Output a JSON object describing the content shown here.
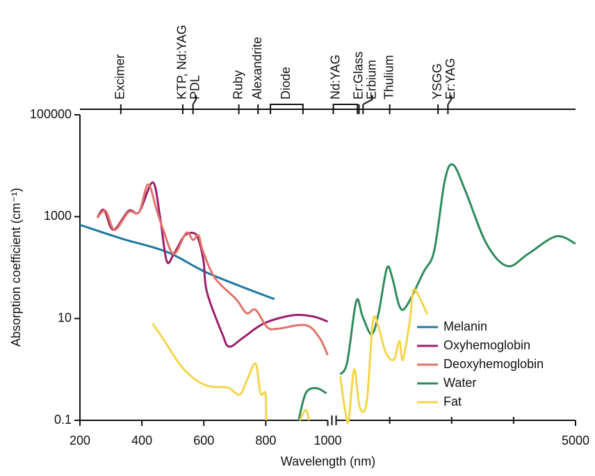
{
  "chart_data": {
    "type": "line",
    "xlabel": "Wavelength (nm)",
    "ylabel": "Absorption coefficient (cm⁻¹)",
    "ylog": true,
    "ylim": [
      0.1,
      100000
    ],
    "yticks": [
      0.1,
      10,
      1000,
      100000
    ],
    "xsegments": [
      [
        200,
        1000
      ],
      [
        1000,
        5000
      ]
    ],
    "xticks": [
      200,
      400,
      600,
      800,
      1000,
      5000
    ],
    "xminor_ticks": [
      2000,
      3000,
      4000
    ],
    "grid": false,
    "legend_position": "lower right",
    "lasers": [
      {
        "name": "Excimer",
        "wavelength": 332
      },
      {
        "name": "KTP, Nd:YAG",
        "wavelength": 532
      },
      {
        "name": "PDL",
        "wavelength": 565
      },
      {
        "name": "Ruby",
        "wavelength": 713
      },
      {
        "name": "Alexandrite",
        "wavelength": 775
      },
      {
        "name": "Diode",
        "range": [
          815,
          920
        ]
      },
      {
        "name": "Nd:YAG",
        "range": [
          1090,
          1480
        ]
      },
      {
        "name": "Er:Glass",
        "wavelength": 1505
      },
      {
        "name": "Erbium",
        "wavelength": 1570
      },
      {
        "name": "Thulium",
        "wavelength": 2000
      },
      {
        "name": "YSGG",
        "wavelength": 2780
      },
      {
        "name": "Er:YAG",
        "wavelength": 2940
      }
    ],
    "series": [
      {
        "name": "Melanin",
        "color": "#1f78a0",
        "x": [
          200,
          335,
          480,
          603,
          727,
          828
        ],
        "values": [
          690,
          370,
          204,
          83,
          41,
          24
        ]
      },
      {
        "name": "Oxyhemoglobin",
        "color": "#9a1f6b",
        "x": [
          256,
          278,
          308,
          357,
          391,
          435,
          458,
          480,
          503,
          536,
          563,
          581,
          599,
          610,
          660,
          682,
          727,
          794,
          884,
          951,
          1000
        ],
        "values": [
          950,
          1350,
          550,
          1300,
          1230,
          4700,
          1050,
          135,
          185,
          410,
          480,
          380,
          135,
          33,
          4.9,
          2.8,
          4.2,
          8,
          11.5,
          11,
          8.7
        ]
      },
      {
        "name": "Deoxyhemoglobin",
        "color": "#e0736a",
        "x": [
          256,
          283,
          312,
          357,
          391,
          420,
          447,
          469,
          503,
          543,
          565,
          583,
          597,
          637,
          704,
          738,
          767,
          805,
          839,
          929,
          973,
          1000
        ],
        "values": [
          950,
          1300,
          550,
          1230,
          1230,
          4300,
          1400,
          550,
          185,
          480,
          350,
          430,
          210,
          61,
          24,
          12.7,
          14.8,
          6.7,
          6.3,
          7.4,
          4.2,
          1.9
        ]
      },
      {
        "name": "Water",
        "color": "#2e8b5c",
        "x": [
          906,
          929,
          962,
          996,
          null,
          1202,
          1315,
          1461,
          1562,
          1708,
          1820,
          1955,
          2045,
          2157,
          2270,
          2550,
          2719,
          2888,
          3022,
          3225,
          3562,
          3899,
          4236,
          4685,
          5000
        ],
        "values": [
          0.1,
          0.34,
          0.43,
          0.34,
          null,
          0.8,
          1.4,
          22,
          11,
          4.9,
          12.6,
          97,
          61,
          17.5,
          17.5,
          83,
          215,
          5000,
          10500,
          3150,
          295,
          107,
          186,
          410,
          295
        ]
      },
      {
        "name": "Fat",
        "color": "#f2d64b",
        "x": [
          435,
          480,
          525,
          570,
          615,
          660,
          682,
          716,
          738,
          767,
          783,
          799,
          801,
          null,
          910,
          929,
          940,
          null,
          1202,
          1281,
          1337,
          1427,
          1517,
          1629,
          1730,
          1820,
          1933,
          2067,
          2157,
          2213,
          2326,
          2382,
          2494,
          2607
        ],
        "values": [
          8,
          3.1,
          1.2,
          0.65,
          0.47,
          0.45,
          0.43,
          0.32,
          0.59,
          1.3,
          0.34,
          0.34,
          0.1,
          null,
          0.1,
          0.16,
          0.1,
          null,
          0.74,
          0.155,
          0.1,
          1.0,
          0.18,
          0.23,
          8.7,
          6.8,
          2.2,
          1.55,
          3.6,
          1.55,
          9.3,
          36,
          24,
          12
        ]
      }
    ]
  }
}
